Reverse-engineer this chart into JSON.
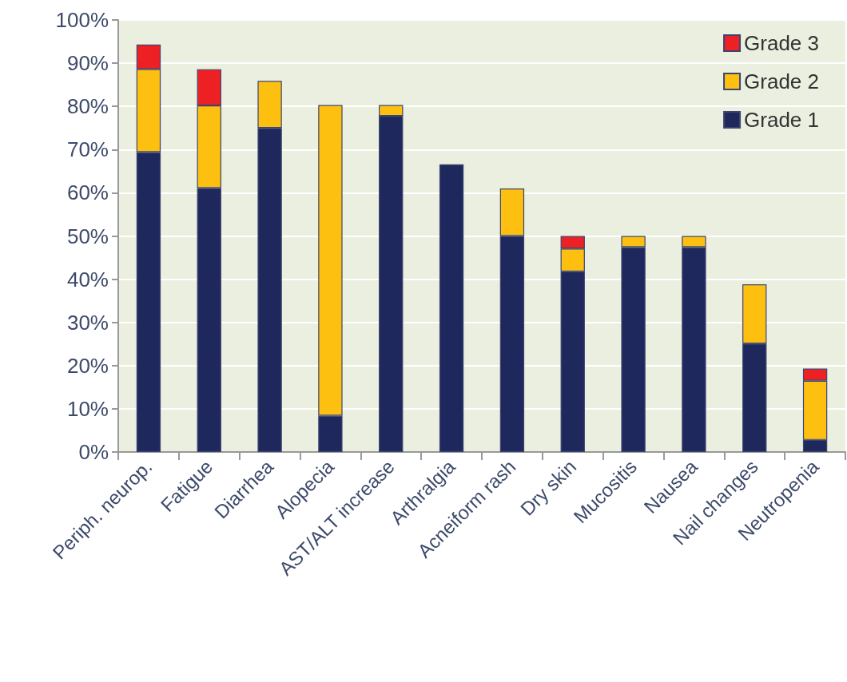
{
  "chart_data": {
    "type": "bar",
    "stacked": true,
    "categories": [
      "Periph. neurop.",
      "Fatigue",
      "Diarrhea",
      "Alopecia",
      "AST/ALT increase",
      "Arthralgia",
      "Acneiform rash",
      "Dry skin",
      "Mucositis",
      "Nausea",
      "Nail changes",
      "Neutropenia"
    ],
    "series": [
      {
        "name": "Grade 1",
        "color": "#1f285c",
        "values": [
          69.4,
          61.1,
          75,
          8.4,
          77.8,
          66.6,
          50,
          41.8,
          47.4,
          47.4,
          25.1,
          2.8
        ]
      },
      {
        "name": "Grade 2",
        "color": "#fdc010",
        "values": [
          19.2,
          19.1,
          10.9,
          71.9,
          2.5,
          null,
          11,
          5.3,
          2.6,
          2.6,
          13.7,
          13.7
        ]
      },
      {
        "name": "Grade 3",
        "color": "#ed2024",
        "values": [
          5.7,
          8.4,
          null,
          null,
          null,
          null,
          null,
          2.9,
          null,
          null,
          null,
          2.8
        ]
      }
    ],
    "ylim": [
      0,
      100
    ],
    "yticks": [
      {
        "value": 0,
        "label": "0%"
      },
      {
        "value": 10,
        "label": "10%"
      },
      {
        "value": 20,
        "label": "20%"
      },
      {
        "value": 30,
        "label": "30%"
      },
      {
        "value": 40,
        "label": "40%"
      },
      {
        "value": 50,
        "label": "50%"
      },
      {
        "value": 60,
        "label": "60%"
      },
      {
        "value": 70,
        "label": "70%"
      },
      {
        "value": 80,
        "label": "80%"
      },
      {
        "value": 90,
        "label": "90%"
      },
      {
        "value": 100,
        "label": "100%"
      }
    ],
    "grid": "y",
    "legend": "top right"
  }
}
